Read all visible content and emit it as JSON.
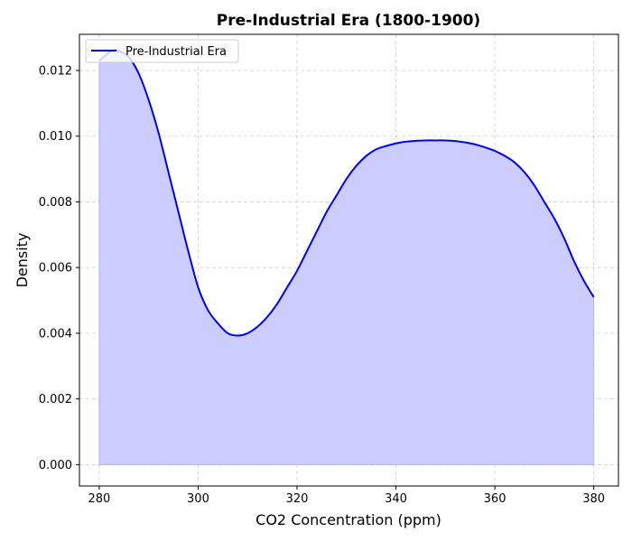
{
  "chart_data": {
    "type": "area",
    "title": "Pre-Industrial Era (1800-1900)",
    "xlabel": "CO2 Concentration (ppm)",
    "ylabel": "Density",
    "xlim": [
      276,
      385
    ],
    "ylim": [
      -0.00065,
      0.0131
    ],
    "xticks": [
      280,
      300,
      320,
      340,
      360,
      380
    ],
    "yticks": [
      0.0,
      0.002,
      0.004,
      0.006,
      0.008,
      0.01,
      0.012
    ],
    "xtick_labels": [
      "280",
      "300",
      "320",
      "340",
      "360",
      "380"
    ],
    "ytick_labels": [
      "0.000",
      "0.002",
      "0.004",
      "0.006",
      "0.008",
      "0.010",
      "0.012"
    ],
    "grid": true,
    "legend_position": "top-left",
    "series": [
      {
        "name": "Pre-Industrial Era",
        "color": "#0000ff",
        "fill_color": "#ccccff",
        "x": [
          280,
          282,
          283,
          284,
          286,
          288,
          290,
          292,
          294,
          296,
          298,
          300,
          302,
          304,
          306,
          308,
          310,
          312,
          314,
          316,
          318,
          320,
          322,
          324,
          326,
          328,
          330,
          332,
          334,
          336,
          338,
          340,
          342,
          344,
          346,
          348,
          350,
          352,
          354,
          356,
          358,
          360,
          362,
          364,
          366,
          368,
          370,
          372,
          374,
          376,
          378,
          380
        ],
        "values": [
          0.0123,
          0.01255,
          0.01262,
          0.0126,
          0.0124,
          0.0119,
          0.0111,
          0.0101,
          0.0089,
          0.0077,
          0.0065,
          0.0054,
          0.0047,
          0.0043,
          0.004,
          0.00393,
          0.004,
          0.0042,
          0.0045,
          0.0049,
          0.0054,
          0.0059,
          0.0065,
          0.0071,
          0.0077,
          0.0082,
          0.0087,
          0.0091,
          0.0094,
          0.0096,
          0.0097,
          0.00978,
          0.00983,
          0.00986,
          0.00987,
          0.00987,
          0.00987,
          0.00985,
          0.00981,
          0.00975,
          0.00966,
          0.00955,
          0.0094,
          0.0092,
          0.0089,
          0.0085,
          0.008,
          0.0075,
          0.0069,
          0.0062,
          0.0056,
          0.0051
        ]
      }
    ]
  }
}
